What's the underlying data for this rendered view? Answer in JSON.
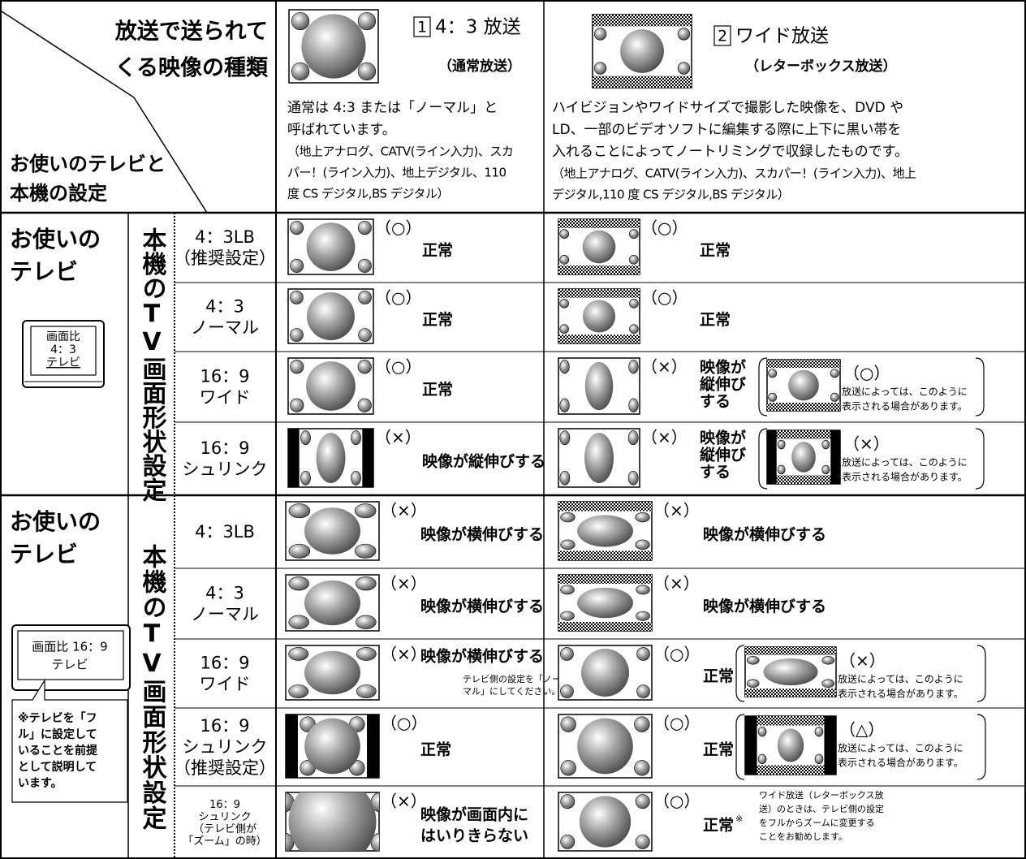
{
  "header": {
    "corner_top": [
      "放送で送られて",
      "くる映像の種類"
    ],
    "corner_bottom": [
      "お使いのテレビと",
      "本機の設定"
    ],
    "columns": [
      {
        "number": "1",
        "title": "4：3 放送",
        "subtitle": "（通常放送）",
        "description": [
          "通常は 4:3 または「ノーマル」と",
          "呼ばれています。"
        ],
        "channels": [
          "（地上アナログ、CATV(ライン入力)、スカ",
          "パー！(ライン入力)、地上デジタル、110",
          "度 CS デジタル,BS デジタル）"
        ]
      },
      {
        "number": "2",
        "title": "ワイド放送",
        "subtitle": "（レターボックス放送）",
        "description": [
          "ハイビジョンやワイドサイズで撮影した映像を、DVD や",
          "LD、一部のビデオソフトに編集する際に上下に黒い帯を",
          "入れることによってノートリミングで収録したものです。"
        ],
        "channels": [
          "（地上アナログ、CATV(ライン入力)、スカパー！(ライン入力)、地上",
          "デジタル,110 度 CS デジタル,BS デジタル）"
        ]
      }
    ]
  },
  "groups": [
    {
      "tv_label": [
        "お使いの",
        "テレビ"
      ],
      "tv_screen": [
        "画面比",
        "4：3",
        "テレビ"
      ],
      "setting_label": "本機のTV画面形状設定",
      "rows": [
        {
          "setting": [
            "4：3LB",
            "（推奨設定）"
          ],
          "normal": {
            "mark": "（○）",
            "result": [
              "正常"
            ]
          },
          "wide": {
            "mark": "（○）",
            "result": [
              "正常"
            ]
          }
        },
        {
          "setting": [
            "4：3",
            "ノーマル"
          ],
          "normal": {
            "mark": "（○）",
            "result": [
              "正常"
            ]
          },
          "wide": {
            "mark": "（○）",
            "result": [
              "正常"
            ]
          }
        },
        {
          "setting": [
            "16：9",
            "ワイド"
          ],
          "normal": {
            "mark": "（○）",
            "result": [
              "正常"
            ]
          },
          "wide": {
            "mark": "（×）",
            "result": [
              "映像が",
              "縦伸び",
              "する"
            ],
            "alt": {
              "mark": "（○）",
              "note": [
                "放送によっては、このように",
                "表示される場合があります。"
              ]
            }
          }
        },
        {
          "setting": [
            "16：9",
            "シュリンク"
          ],
          "normal": {
            "mark": "（×）",
            "result": [
              "映像が縦伸びする"
            ]
          },
          "wide": {
            "mark": "（×）",
            "result": [
              "映像が",
              "縦伸び",
              "する"
            ],
            "alt": {
              "mark": "（×）",
              "note": [
                "放送によっては、このように",
                "表示される場合があります。"
              ]
            }
          }
        }
      ]
    },
    {
      "tv_label": [
        "お使いの",
        "テレビ"
      ],
      "tv_screen": [
        "画面比 16：9",
        "テレビ"
      ],
      "setting_label": "本機のTV画面形状設定",
      "note": [
        "※テレビを「フ",
        "ル」に設定して",
        "いることを前提",
        "として説明して",
        "います。"
      ],
      "rows": [
        {
          "setting": [
            "4：3LB"
          ],
          "normal": {
            "mark": "（×）",
            "result": [
              "映像が横伸びする"
            ]
          },
          "wide": {
            "mark": "（×）",
            "result": [
              "映像が横伸びする"
            ]
          }
        },
        {
          "setting": [
            "4：3",
            "ノーマル"
          ],
          "normal": {
            "mark": "（×）",
            "result": [
              "映像が横伸びする"
            ]
          },
          "wide": {
            "mark": "（×）",
            "result": [
              "映像が横伸びする"
            ]
          }
        },
        {
          "setting": [
            "16：9",
            "ワイド"
          ],
          "normal": {
            "mark": "（×）",
            "result": [
              "映像が横伸びする"
            ],
            "note": [
              "テレビ側の設定を「ノー",
              "マル」にしてください。"
            ]
          },
          "wide": {
            "mark": "（○）",
            "result": [
              "正常"
            ],
            "alt": {
              "mark": "（×）",
              "note": [
                "放送によっては、このように",
                "表示される場合があります。"
              ]
            }
          }
        },
        {
          "setting": [
            "16：9",
            "シュリンク",
            "（推奨設定）"
          ],
          "normal": {
            "mark": "（○）",
            "result": [
              "正常"
            ]
          },
          "wide": {
            "mark": "（○）",
            "result": [
              "正常"
            ],
            "alt": {
              "mark": "（△）",
              "note": [
                "放送によっては、このように",
                "表示される場合があります。"
              ]
            }
          }
        },
        {
          "setting": [
            "16：9",
            "シュリンク",
            "（テレビ側が",
            "「ズーム」の時）"
          ],
          "normal": {
            "mark": "（×）",
            "result": [
              "映像が画面内に",
              "はいりきらない"
            ]
          },
          "wide": {
            "mark": "（○）",
            "result": [
              "正常"
            ],
            "asterisk": "※",
            "note": [
              "ワイド放送（レターボックス放",
              "送）のときは、テレビ側の設定",
              "をフルからズームに変更する",
              "ことをお勧めします。"
            ]
          }
        }
      ]
    }
  ]
}
